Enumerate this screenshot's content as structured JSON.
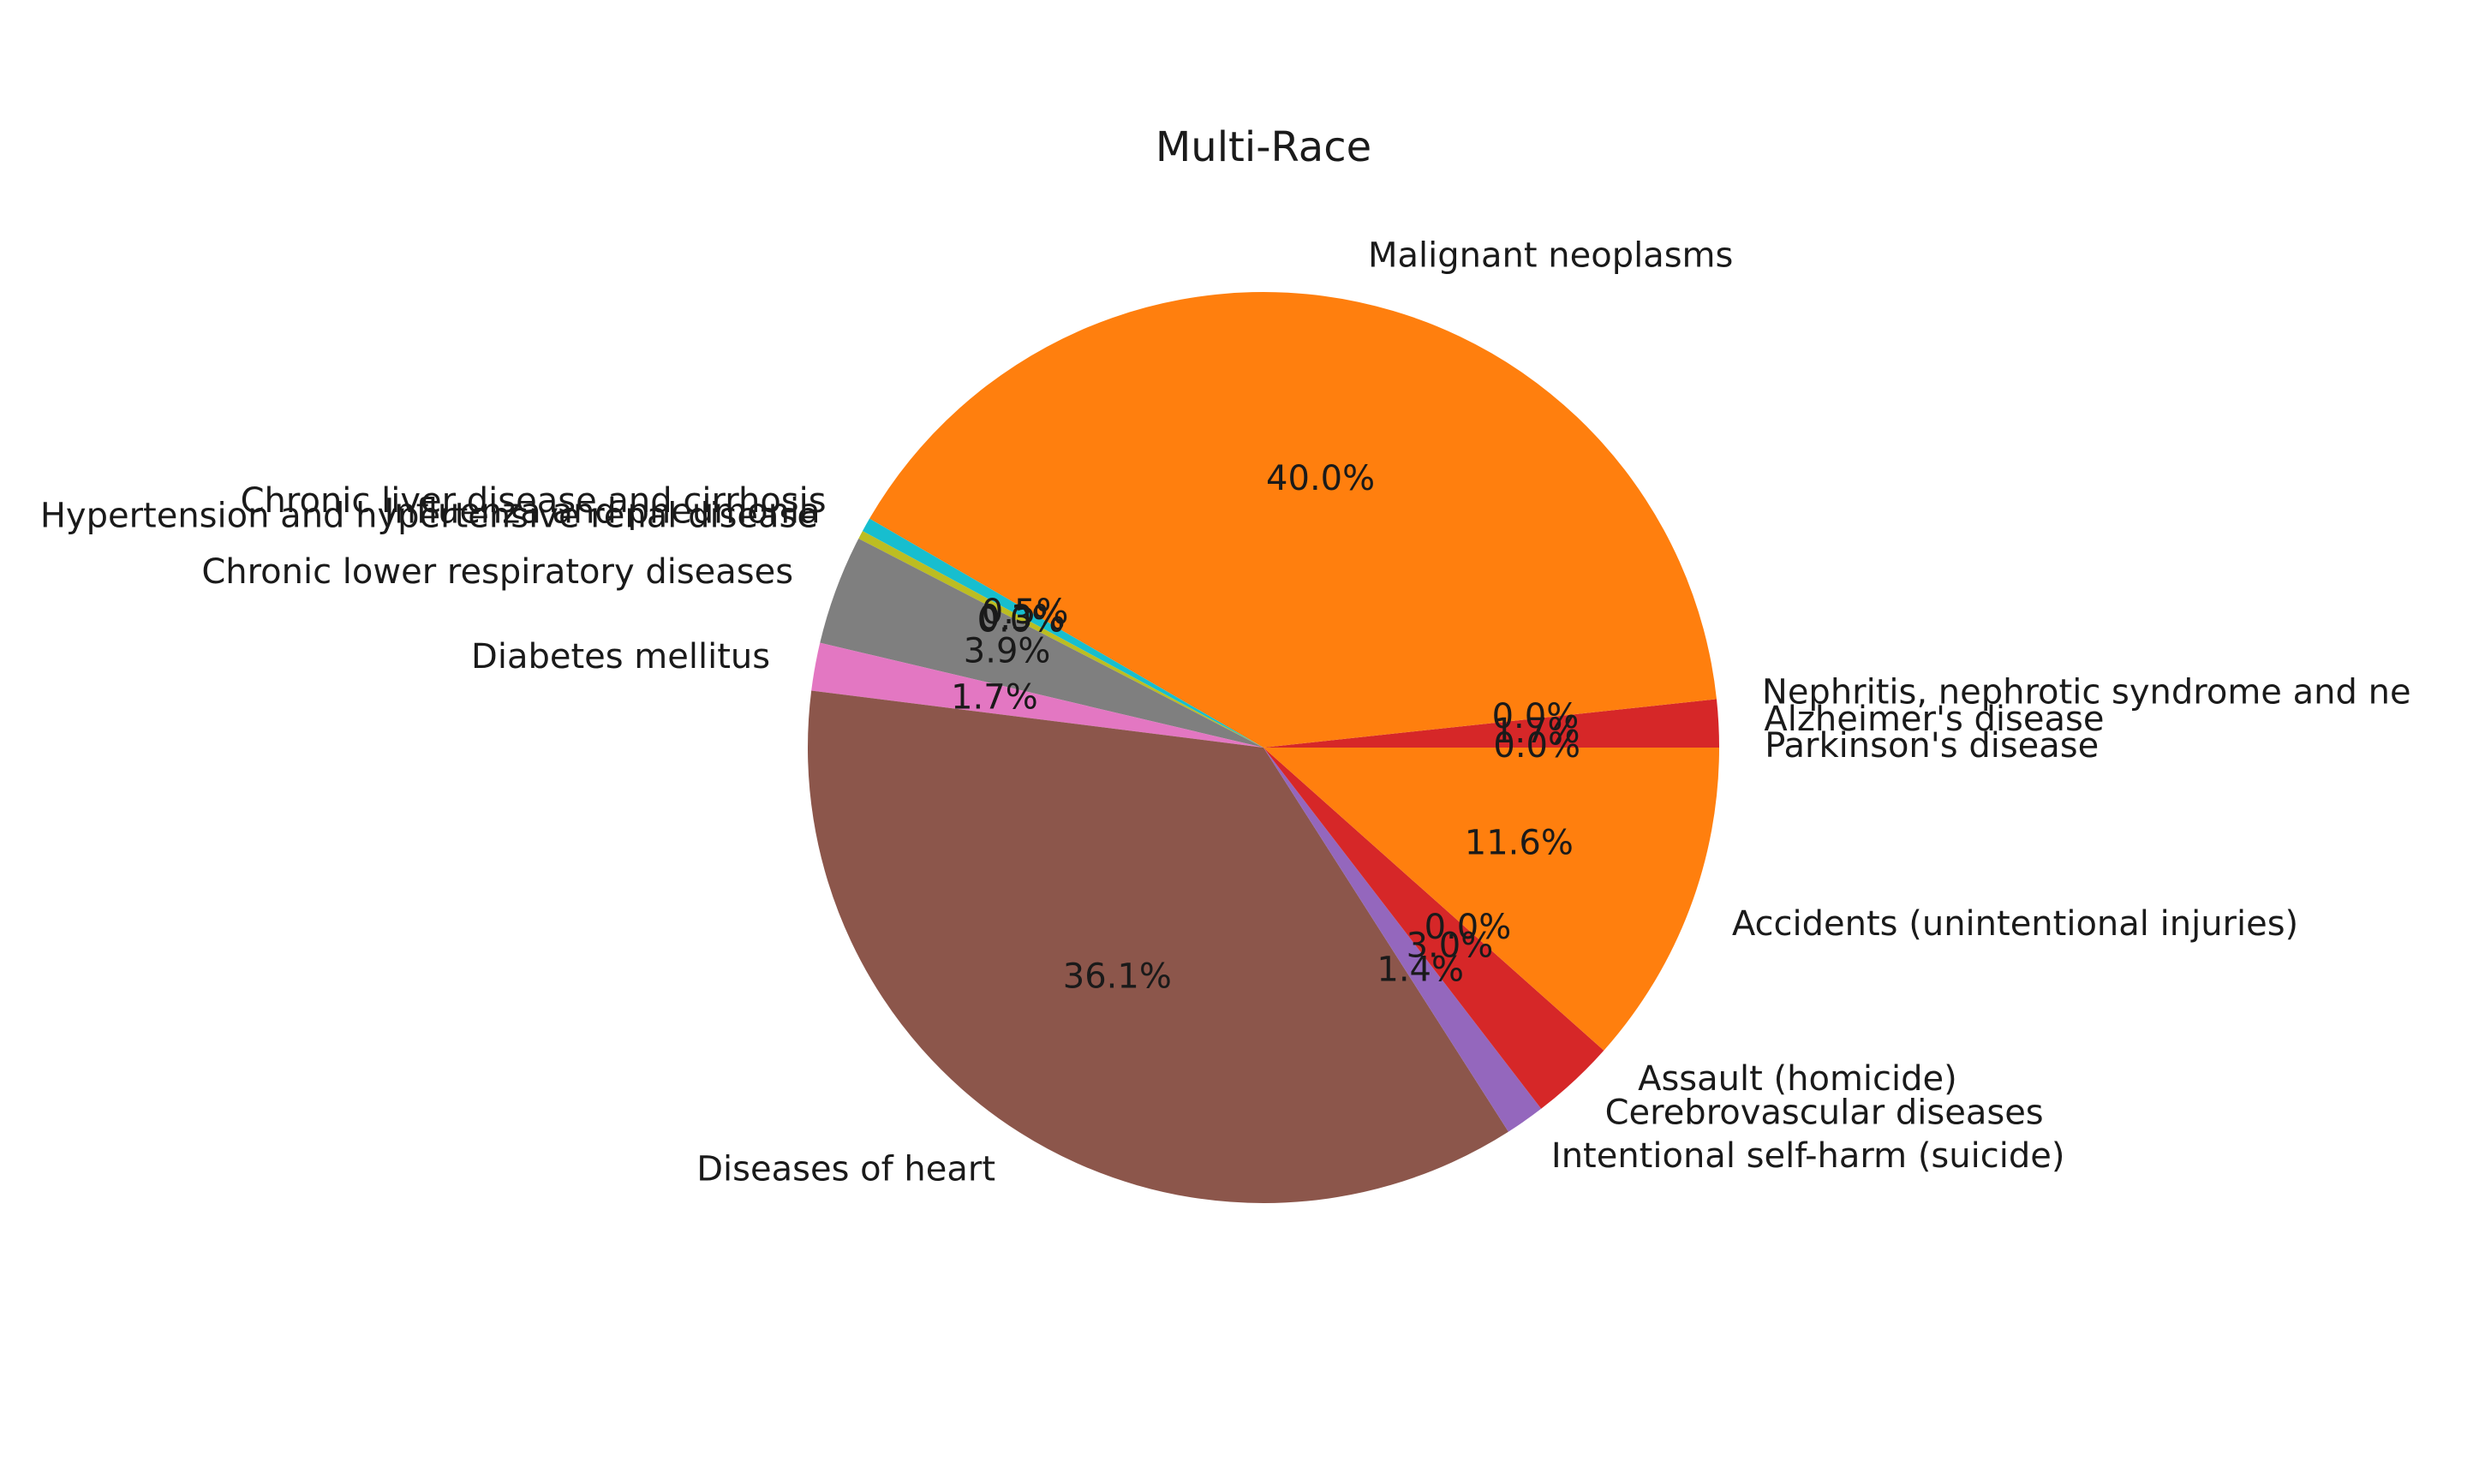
{
  "chart_data": {
    "type": "pie",
    "title": "Multi-Race",
    "slices": [
      {
        "label": "Parkinson's disease",
        "value": 0.0,
        "pct_label": "0.0%",
        "color": "#d62728"
      },
      {
        "label": "Alzheimer's disease",
        "value": 1.7,
        "pct_label": "1.7%",
        "color": "#d62728"
      },
      {
        "label": "Nephritis, nephrotic syndrome and ne",
        "value": 0.0,
        "pct_label": "0.0%",
        "color": "#d62728"
      },
      {
        "label": "Malignant neoplasms",
        "value": 40.0,
        "pct_label": "40.0%",
        "color": "#ff7f0e"
      },
      {
        "label": "Chronic liver disease and cirrhosis",
        "value": 0.5,
        "pct_label": "0.5%",
        "color": "#17becf"
      },
      {
        "label": "Influenza and pneumonia",
        "value": 0.3,
        "pct_label": "0.3%",
        "color": "#bcbd22"
      },
      {
        "label": "Hypertension and hypertensive renal disease",
        "value": 0.0,
        "pct_label": "0.0%",
        "color": "#bcbd22"
      },
      {
        "label": "Chronic lower respiratory diseases",
        "value": 3.9,
        "pct_label": "3.9%",
        "color": "#7f7f7f"
      },
      {
        "label": "Diabetes mellitus",
        "value": 1.7,
        "pct_label": "1.7%",
        "color": "#e377c2"
      },
      {
        "label": "Diseases of heart",
        "value": 36.1,
        "pct_label": "36.1%",
        "color": "#8c564b"
      },
      {
        "label": "Intentional self-harm (suicide)",
        "value": 1.4,
        "pct_label": "1.4%",
        "color": "#9467bd"
      },
      {
        "label": "Cerebrovascular diseases",
        "value": 3.0,
        "pct_label": "3.0%",
        "color": "#d62728"
      },
      {
        "label": "Assault (homicide)",
        "value": 0.0,
        "pct_label": "0.0%",
        "color": "#d62728"
      },
      {
        "label": "Accidents (unintentional injuries)",
        "value": 11.6,
        "pct_label": "11.6%",
        "color": "#ff7f0e"
      }
    ]
  }
}
